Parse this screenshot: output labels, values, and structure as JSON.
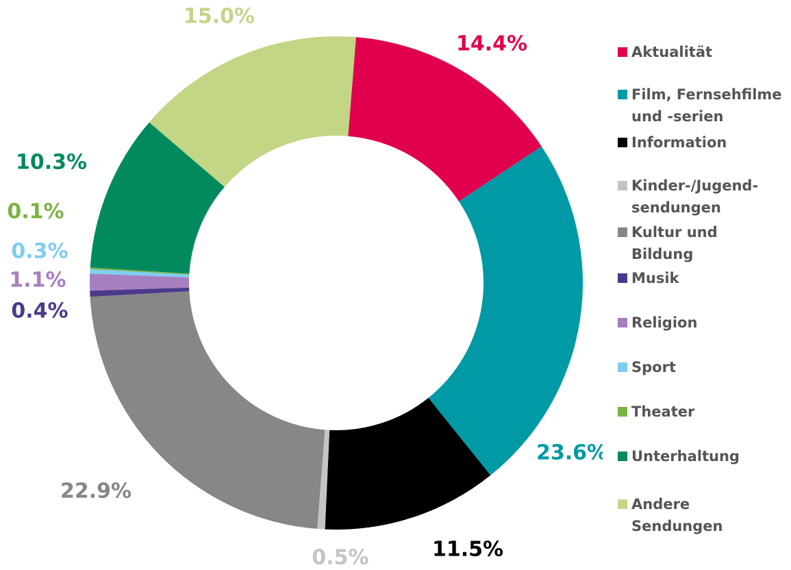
{
  "chart_data": {
    "type": "donut",
    "categories": [
      "Aktualität",
      "Film, Fernsehfilme und -serien",
      "Information",
      "Kinder-/Jugend­sendungen",
      "Kultur und Bildung",
      "Musik",
      "Religion",
      "Sport",
      "Theater",
      "Unterhaltung",
      "Andere Sendungen"
    ],
    "values": [
      14.4,
      23.6,
      11.5,
      0.5,
      22.9,
      0.4,
      1.1,
      0.3,
      0.1,
      10.3,
      15.0
    ],
    "value_labels": [
      "14.4%",
      "23.6%",
      "11.5%",
      "0.5%",
      "22.9%",
      "0.4%",
      "1.1%",
      "0.3%",
      "0.1%",
      "10.3%",
      "15.0%"
    ],
    "colors": [
      "#e0004d",
      "#009aa6",
      "#000000",
      "#c4c4c4",
      "#878787",
      "#4b3a8c",
      "#a77fc0",
      "#7fcdf0",
      "#7bb241",
      "#008a5e",
      "#c2d686"
    ],
    "legend": "right"
  }
}
